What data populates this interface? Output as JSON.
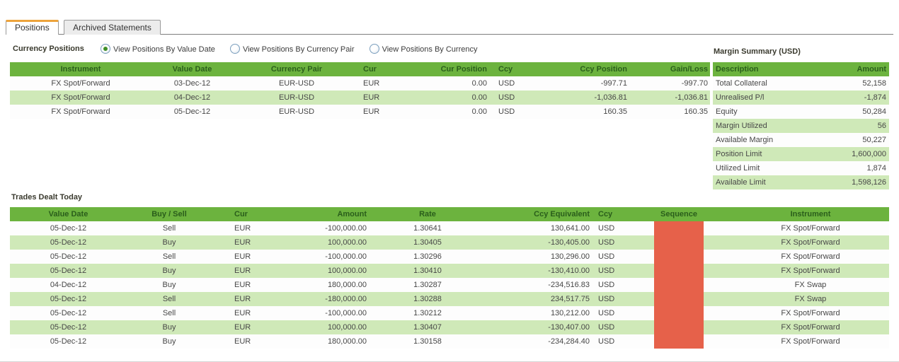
{
  "tabs": [
    {
      "label": "Positions",
      "active": true
    },
    {
      "label": "Archived Statements",
      "active": false
    }
  ],
  "positions_section": {
    "title": "Currency Positions",
    "radios": [
      {
        "label": "View Positions By Value Date",
        "selected": true
      },
      {
        "label": "View Positions By Currency Pair",
        "selected": false
      },
      {
        "label": "View Positions By Currency",
        "selected": false
      }
    ],
    "table": {
      "headers": [
        "Instrument",
        "Value Date",
        "Currency Pair",
        "Cur",
        "Cur Position",
        "Ccy",
        "Ccy Position",
        "Gain/Loss"
      ],
      "rows": [
        [
          "FX Spot/Forward",
          "03-Dec-12",
          "EUR-USD",
          "EUR",
          "0.00",
          "USD",
          "-997.71",
          "-997.70"
        ],
        [
          "FX Spot/Forward",
          "04-Dec-12",
          "EUR-USD",
          "EUR",
          "0.00",
          "USD",
          "-1,036.81",
          "-1,036.81"
        ],
        [
          "FX Spot/Forward",
          "05-Dec-12",
          "EUR-USD",
          "EUR",
          "0.00",
          "USD",
          "160.35",
          "160.35"
        ]
      ]
    }
  },
  "margin_summary": {
    "title": "Margin Summary (USD)",
    "headers": [
      "Description",
      "Amount"
    ],
    "rows": [
      [
        "Total Collateral",
        "52,158"
      ],
      [
        "Unrealised P/l",
        "-1,874"
      ],
      [
        "Equity",
        "50,284"
      ],
      [
        "Margin Utilized",
        "56"
      ],
      [
        "Available Margin",
        "50,227"
      ],
      [
        "Position Limit",
        "1,600,000"
      ],
      [
        "Utilized Limit",
        "1,874"
      ],
      [
        "Available Limit",
        "1,598,126"
      ]
    ]
  },
  "trades_section": {
    "title": "Trades Dealt Today",
    "headers": [
      "Value Date",
      "Buy / Sell",
      "Cur",
      "Amount",
      "Rate",
      "Ccy Equivalent",
      "Ccy",
      "Sequence",
      "Instrument"
    ],
    "redacted_column": "Sequence",
    "rows": [
      [
        "05-Dec-12",
        "Sell",
        "EUR",
        "-100,000.00",
        "1.30641",
        "130,641.00",
        "USD",
        "",
        "FX Spot/Forward"
      ],
      [
        "05-Dec-12",
        "Buy",
        "EUR",
        "100,000.00",
        "1.30405",
        "-130,405.00",
        "USD",
        "",
        "FX Spot/Forward"
      ],
      [
        "05-Dec-12",
        "Sell",
        "EUR",
        "-100,000.00",
        "1.30296",
        "130,296.00",
        "USD",
        "",
        "FX Spot/Forward"
      ],
      [
        "05-Dec-12",
        "Buy",
        "EUR",
        "100,000.00",
        "1.30410",
        "-130,410.00",
        "USD",
        "",
        "FX Spot/Forward"
      ],
      [
        "04-Dec-12",
        "Buy",
        "EUR",
        "180,000.00",
        "1.30287",
        "-234,516.83",
        "USD",
        "",
        "FX Swap"
      ],
      [
        "05-Dec-12",
        "Sell",
        "EUR",
        "-180,000.00",
        "1.30288",
        "234,517.75",
        "USD",
        "",
        "FX Swap"
      ],
      [
        "05-Dec-12",
        "Sell",
        "EUR",
        "-100,000.00",
        "1.30212",
        "130,212.00",
        "USD",
        "",
        "FX Spot/Forward"
      ],
      [
        "05-Dec-12",
        "Buy",
        "EUR",
        "100,000.00",
        "1.30407",
        "-130,407.00",
        "USD",
        "",
        "FX Spot/Forward"
      ],
      [
        "05-Dec-12",
        "Buy",
        "EUR",
        "180,000.00",
        "1.30158",
        "-234,284.40",
        "USD",
        "",
        "FX Spot/Forward"
      ]
    ]
  },
  "colors": {
    "table_header_green": "#6cb33e",
    "table_header_text": "#2a5e1b",
    "row_alt_green": "#cfe9b8",
    "redaction_red": "#e6614a",
    "active_tab_accent": "#eda33b",
    "radio_selected_dot": "#3f8f27"
  }
}
